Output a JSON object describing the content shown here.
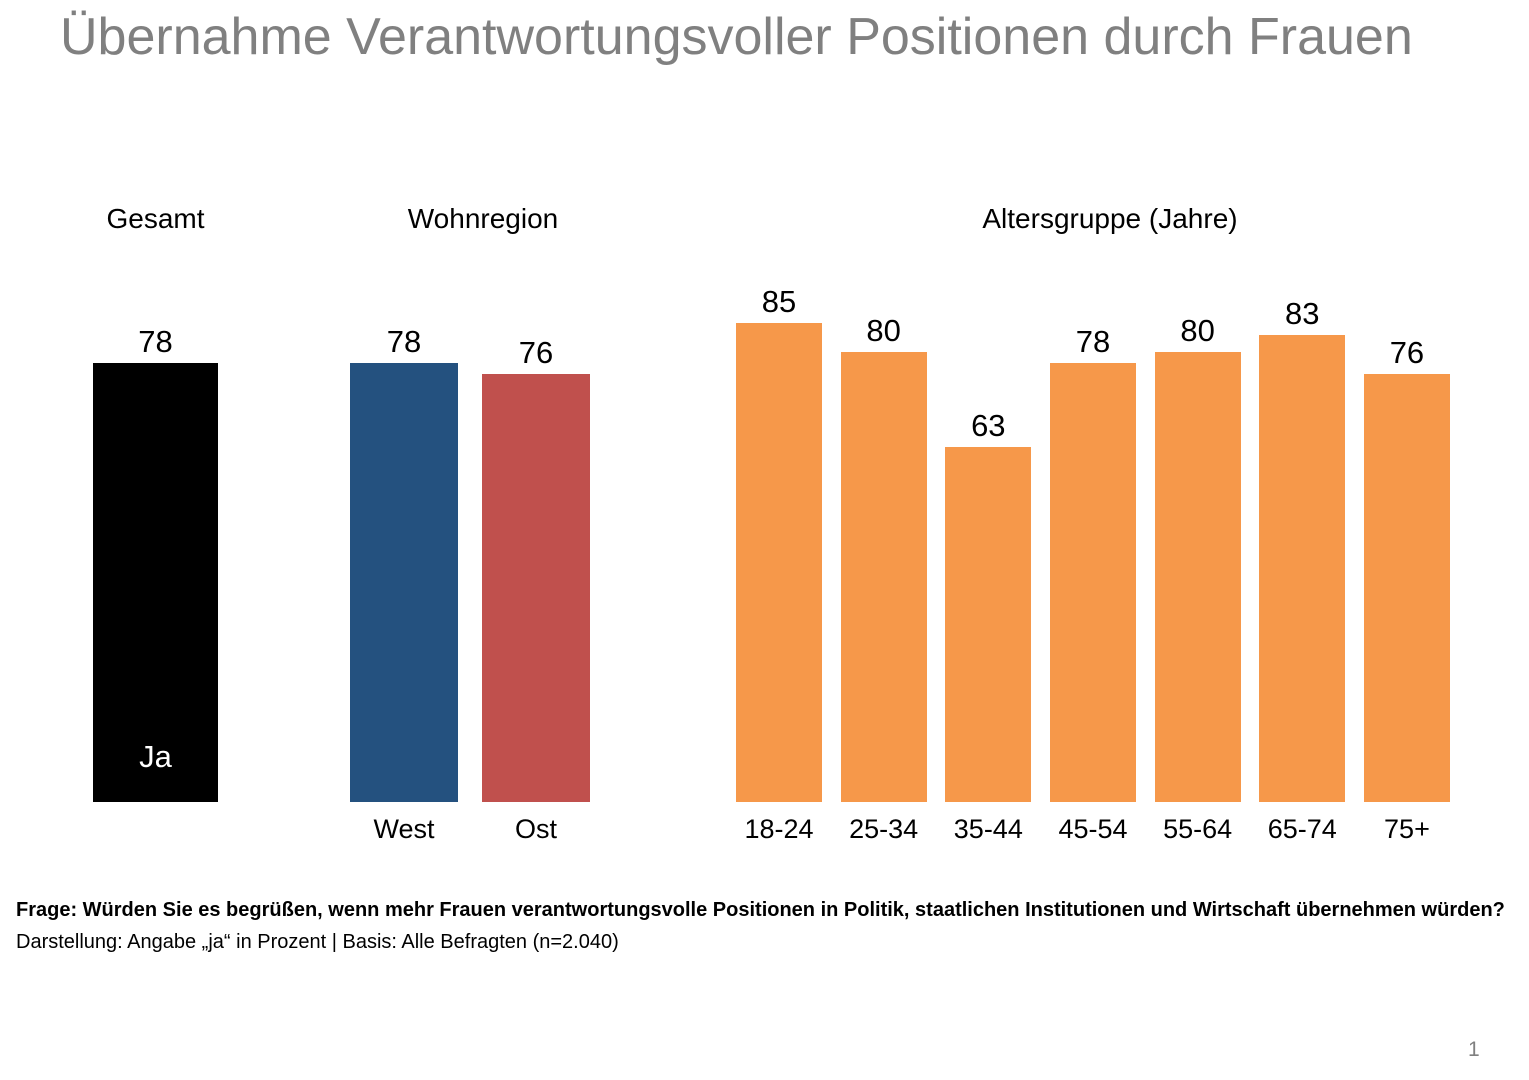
{
  "title": "Übernahme Verantwortungsvoller Positionen durch Frauen",
  "page_number": "1",
  "footnote": {
    "question": "Frage: Würden Sie es begrüßen, wenn mehr Frauen verantwortungsvolle Positionen in Politik, staatlichen Institutionen und Wirtschaft übernehmen würden?",
    "presentation": "Darstellung: Angabe „ja“ in Prozent | Basis: Alle Befragten (n=2.040)"
  },
  "colors": {
    "title_gray": "#808080",
    "gesamt_black": "#000000",
    "west_blue": "#24517F",
    "ost_red": "#C0504D",
    "age_orange": "#F6984A"
  },
  "chart_data": {
    "type": "bar",
    "title": "Übernahme Verantwortungsvoller Positionen durch Frauen",
    "ylabel": "Angabe „ja“ in Prozent",
    "ylim": [
      0,
      100
    ],
    "grid": false,
    "legend_position": "none",
    "groups": [
      {
        "header": "Gesamt",
        "bars": [
          {
            "label": "",
            "inner_label": "Ja",
            "value": 78,
            "color": "#000000"
          }
        ]
      },
      {
        "header": "Wohnregion",
        "bars": [
          {
            "label": "West",
            "value": 78,
            "color": "#24517F"
          },
          {
            "label": "Ost",
            "value": 76,
            "color": "#C0504D"
          }
        ]
      },
      {
        "header": "Altersgruppe (Jahre)",
        "bars": [
          {
            "label": "18-24",
            "value": 85,
            "color": "#F6984A"
          },
          {
            "label": "25-34",
            "value": 80,
            "color": "#F6984A"
          },
          {
            "label": "35-44",
            "value": 63,
            "color": "#F6984A"
          },
          {
            "label": "45-54",
            "value": 78,
            "color": "#F6984A"
          },
          {
            "label": "55-64",
            "value": 80,
            "color": "#F6984A"
          },
          {
            "label": "65-74",
            "value": 83,
            "color": "#F6984A"
          },
          {
            "label": "75+",
            "value": 76,
            "color": "#F6984A"
          }
        ]
      }
    ]
  }
}
